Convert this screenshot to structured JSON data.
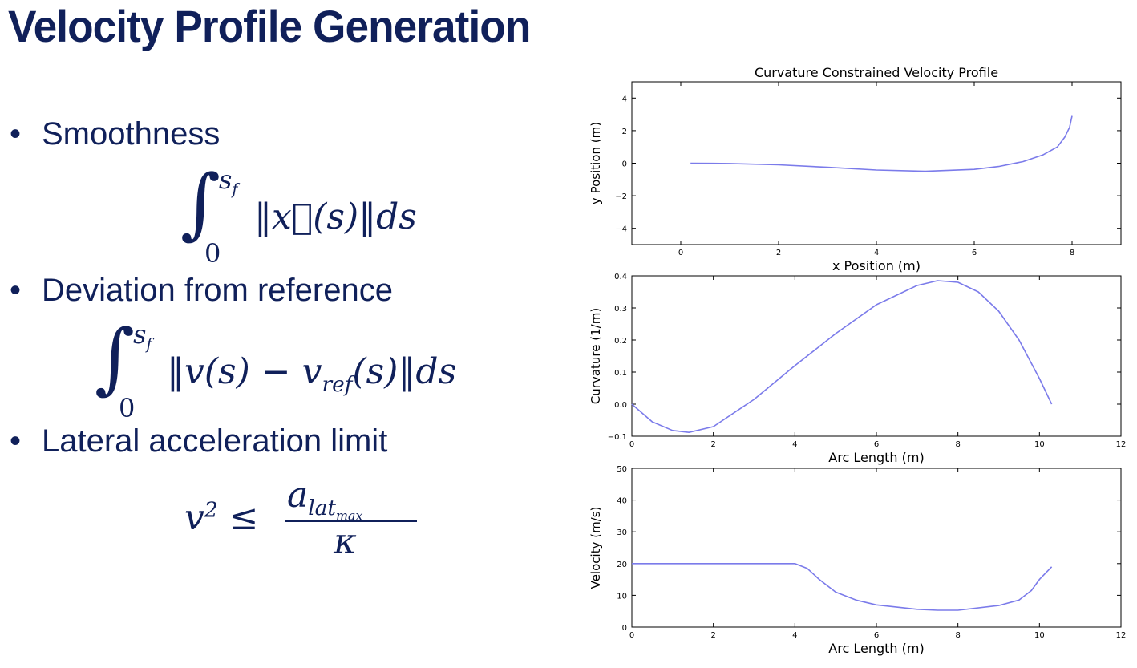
{
  "slide": {
    "title": "Velocity Profile Generation",
    "bullets": [
      {
        "label": "Smoothness",
        "formula": "∫₀^{s_f} ‖x⃛(s)‖ds"
      },
      {
        "label": "Deviation from reference",
        "formula": "∫₀^{s_f} ‖v(s) − v_ref(s)‖ds"
      },
      {
        "label": "Lateral acceleration limit",
        "formula": "v² ≤ a_lat_max / κ"
      }
    ],
    "bullet_symbol": "•"
  },
  "chart_data": [
    {
      "type": "line",
      "title": "Curvature Constrained Velocity Profile",
      "xlabel": "x Position (m)",
      "ylabel": "y Position (m)",
      "xlim": [
        -1,
        9
      ],
      "ylim": [
        -5,
        5
      ],
      "xticks": [
        0,
        2,
        4,
        6,
        8
      ],
      "yticks": [
        -4,
        -2,
        0,
        2,
        4
      ],
      "color": "#7b7bea",
      "x": [
        0.2,
        1.0,
        2.0,
        3.0,
        4.0,
        5.0,
        6.0,
        6.5,
        7.0,
        7.4,
        7.7,
        7.85,
        7.95,
        8.0
      ],
      "y": [
        0.0,
        -0.02,
        -0.1,
        -0.25,
        -0.42,
        -0.5,
        -0.38,
        -0.2,
        0.1,
        0.5,
        1.0,
        1.6,
        2.2,
        2.9
      ]
    },
    {
      "type": "line",
      "title": "",
      "xlabel": "Arc Length (m)",
      "ylabel": "Curvature (1/m)",
      "xlim": [
        0,
        12
      ],
      "ylim": [
        -0.1,
        0.4
      ],
      "xticks": [
        0,
        2,
        4,
        6,
        8,
        10,
        12
      ],
      "yticks": [
        -0.1,
        0.0,
        0.1,
        0.2,
        0.3,
        0.4
      ],
      "color": "#7b7bea",
      "x": [
        0,
        0.5,
        1.0,
        1.4,
        2.0,
        3.0,
        4.0,
        5.0,
        6.0,
        7.0,
        7.5,
        8.0,
        8.5,
        9.0,
        9.5,
        10.0,
        10.3
      ],
      "y": [
        0.0,
        -0.055,
        -0.082,
        -0.088,
        -0.07,
        0.015,
        0.12,
        0.22,
        0.31,
        0.37,
        0.385,
        0.38,
        0.35,
        0.29,
        0.2,
        0.08,
        0.0
      ]
    },
    {
      "type": "line",
      "title": "",
      "xlabel": "Arc Length (m)",
      "ylabel": "Velocity (m/s)",
      "xlim": [
        0,
        12
      ],
      "ylim": [
        0,
        50
      ],
      "xticks": [
        0,
        2,
        4,
        6,
        8,
        10,
        12
      ],
      "yticks": [
        0,
        10,
        20,
        30,
        40,
        50
      ],
      "color": "#7b7bea",
      "x": [
        0,
        1,
        2,
        3,
        4.0,
        4.3,
        4.6,
        5.0,
        5.5,
        6.0,
        7.0,
        7.5,
        8.0,
        9.0,
        9.5,
        9.8,
        10.0,
        10.3
      ],
      "y": [
        20,
        20,
        20,
        20,
        20,
        18.5,
        15,
        11,
        8.5,
        7,
        5.6,
        5.3,
        5.3,
        6.8,
        8.5,
        11.5,
        15,
        19
      ]
    }
  ]
}
